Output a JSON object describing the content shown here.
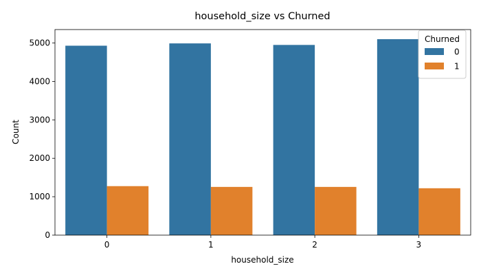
{
  "chart_data": {
    "type": "bar",
    "title": "household_size vs Churned",
    "xlabel": "household_size",
    "ylabel": "Count",
    "categories": [
      "0",
      "1",
      "2",
      "3"
    ],
    "series": [
      {
        "name": "0",
        "color": "#3274a1",
        "values": [
          4930,
          4990,
          4950,
          5100
        ]
      },
      {
        "name": "1",
        "color": "#e1812c",
        "values": [
          1275,
          1255,
          1255,
          1220
        ]
      }
    ],
    "ylim": [
      0,
      5350
    ],
    "yticks": [
      0,
      1000,
      2000,
      3000,
      4000,
      5000
    ],
    "legend": {
      "title": "Churned",
      "placement": "top-right"
    },
    "grid": false
  }
}
